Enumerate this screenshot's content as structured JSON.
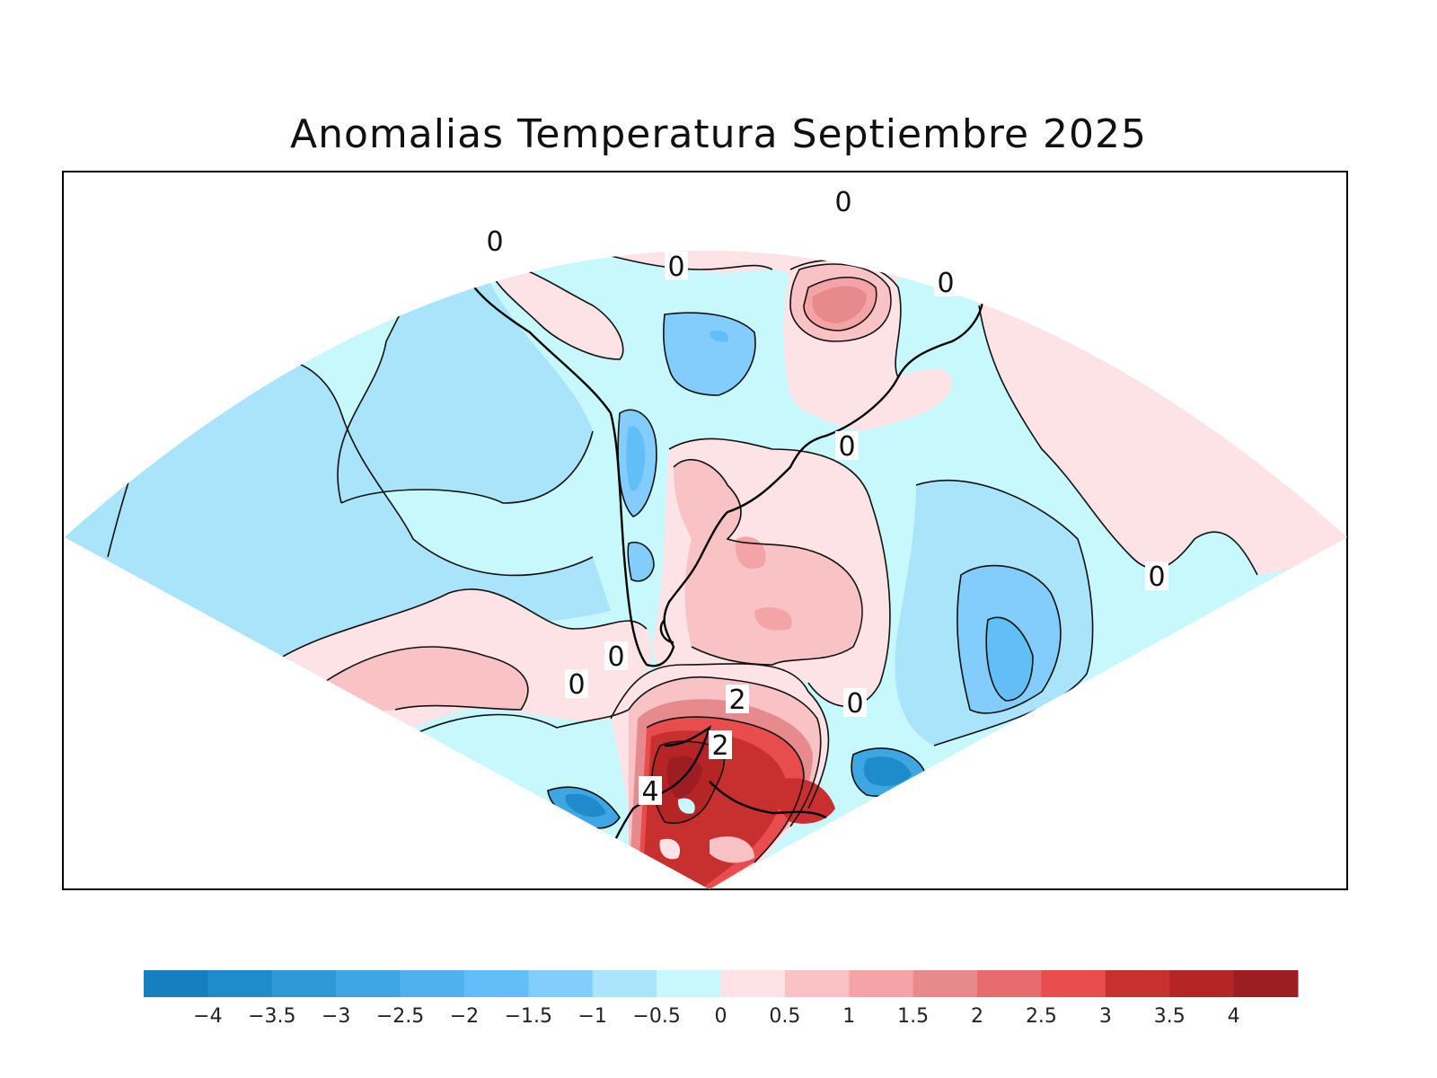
{
  "title": "Anomalias Temperatura Septiembre 2025",
  "colorbar": {
    "colors": [
      "#157fc0",
      "#1e8bcb",
      "#2f98d6",
      "#3ea6e3",
      "#4fb2ee",
      "#62bef7",
      "#82cdfb",
      "#a9e4fb",
      "#c6f8fc",
      "#fde3e6",
      "#f9c3c5",
      "#f4a3a6",
      "#e78a8e",
      "#e86c6e",
      "#e84c4c",
      "#c7302f",
      "#b52525",
      "#9d1e22"
    ],
    "labels": [
      "−4",
      "−3.5",
      "−3",
      "−2.5",
      "−2",
      "−1.5",
      "−1",
      "−0.5",
      "0",
      "0.5",
      "1",
      "1.5",
      "2",
      "2.5",
      "3",
      "3.5",
      "4"
    ]
  },
  "contour_labels": [
    "0",
    "0",
    "0",
    "0",
    "0",
    "0",
    "0",
    "0",
    "0",
    "2",
    "2",
    "4"
  ]
}
